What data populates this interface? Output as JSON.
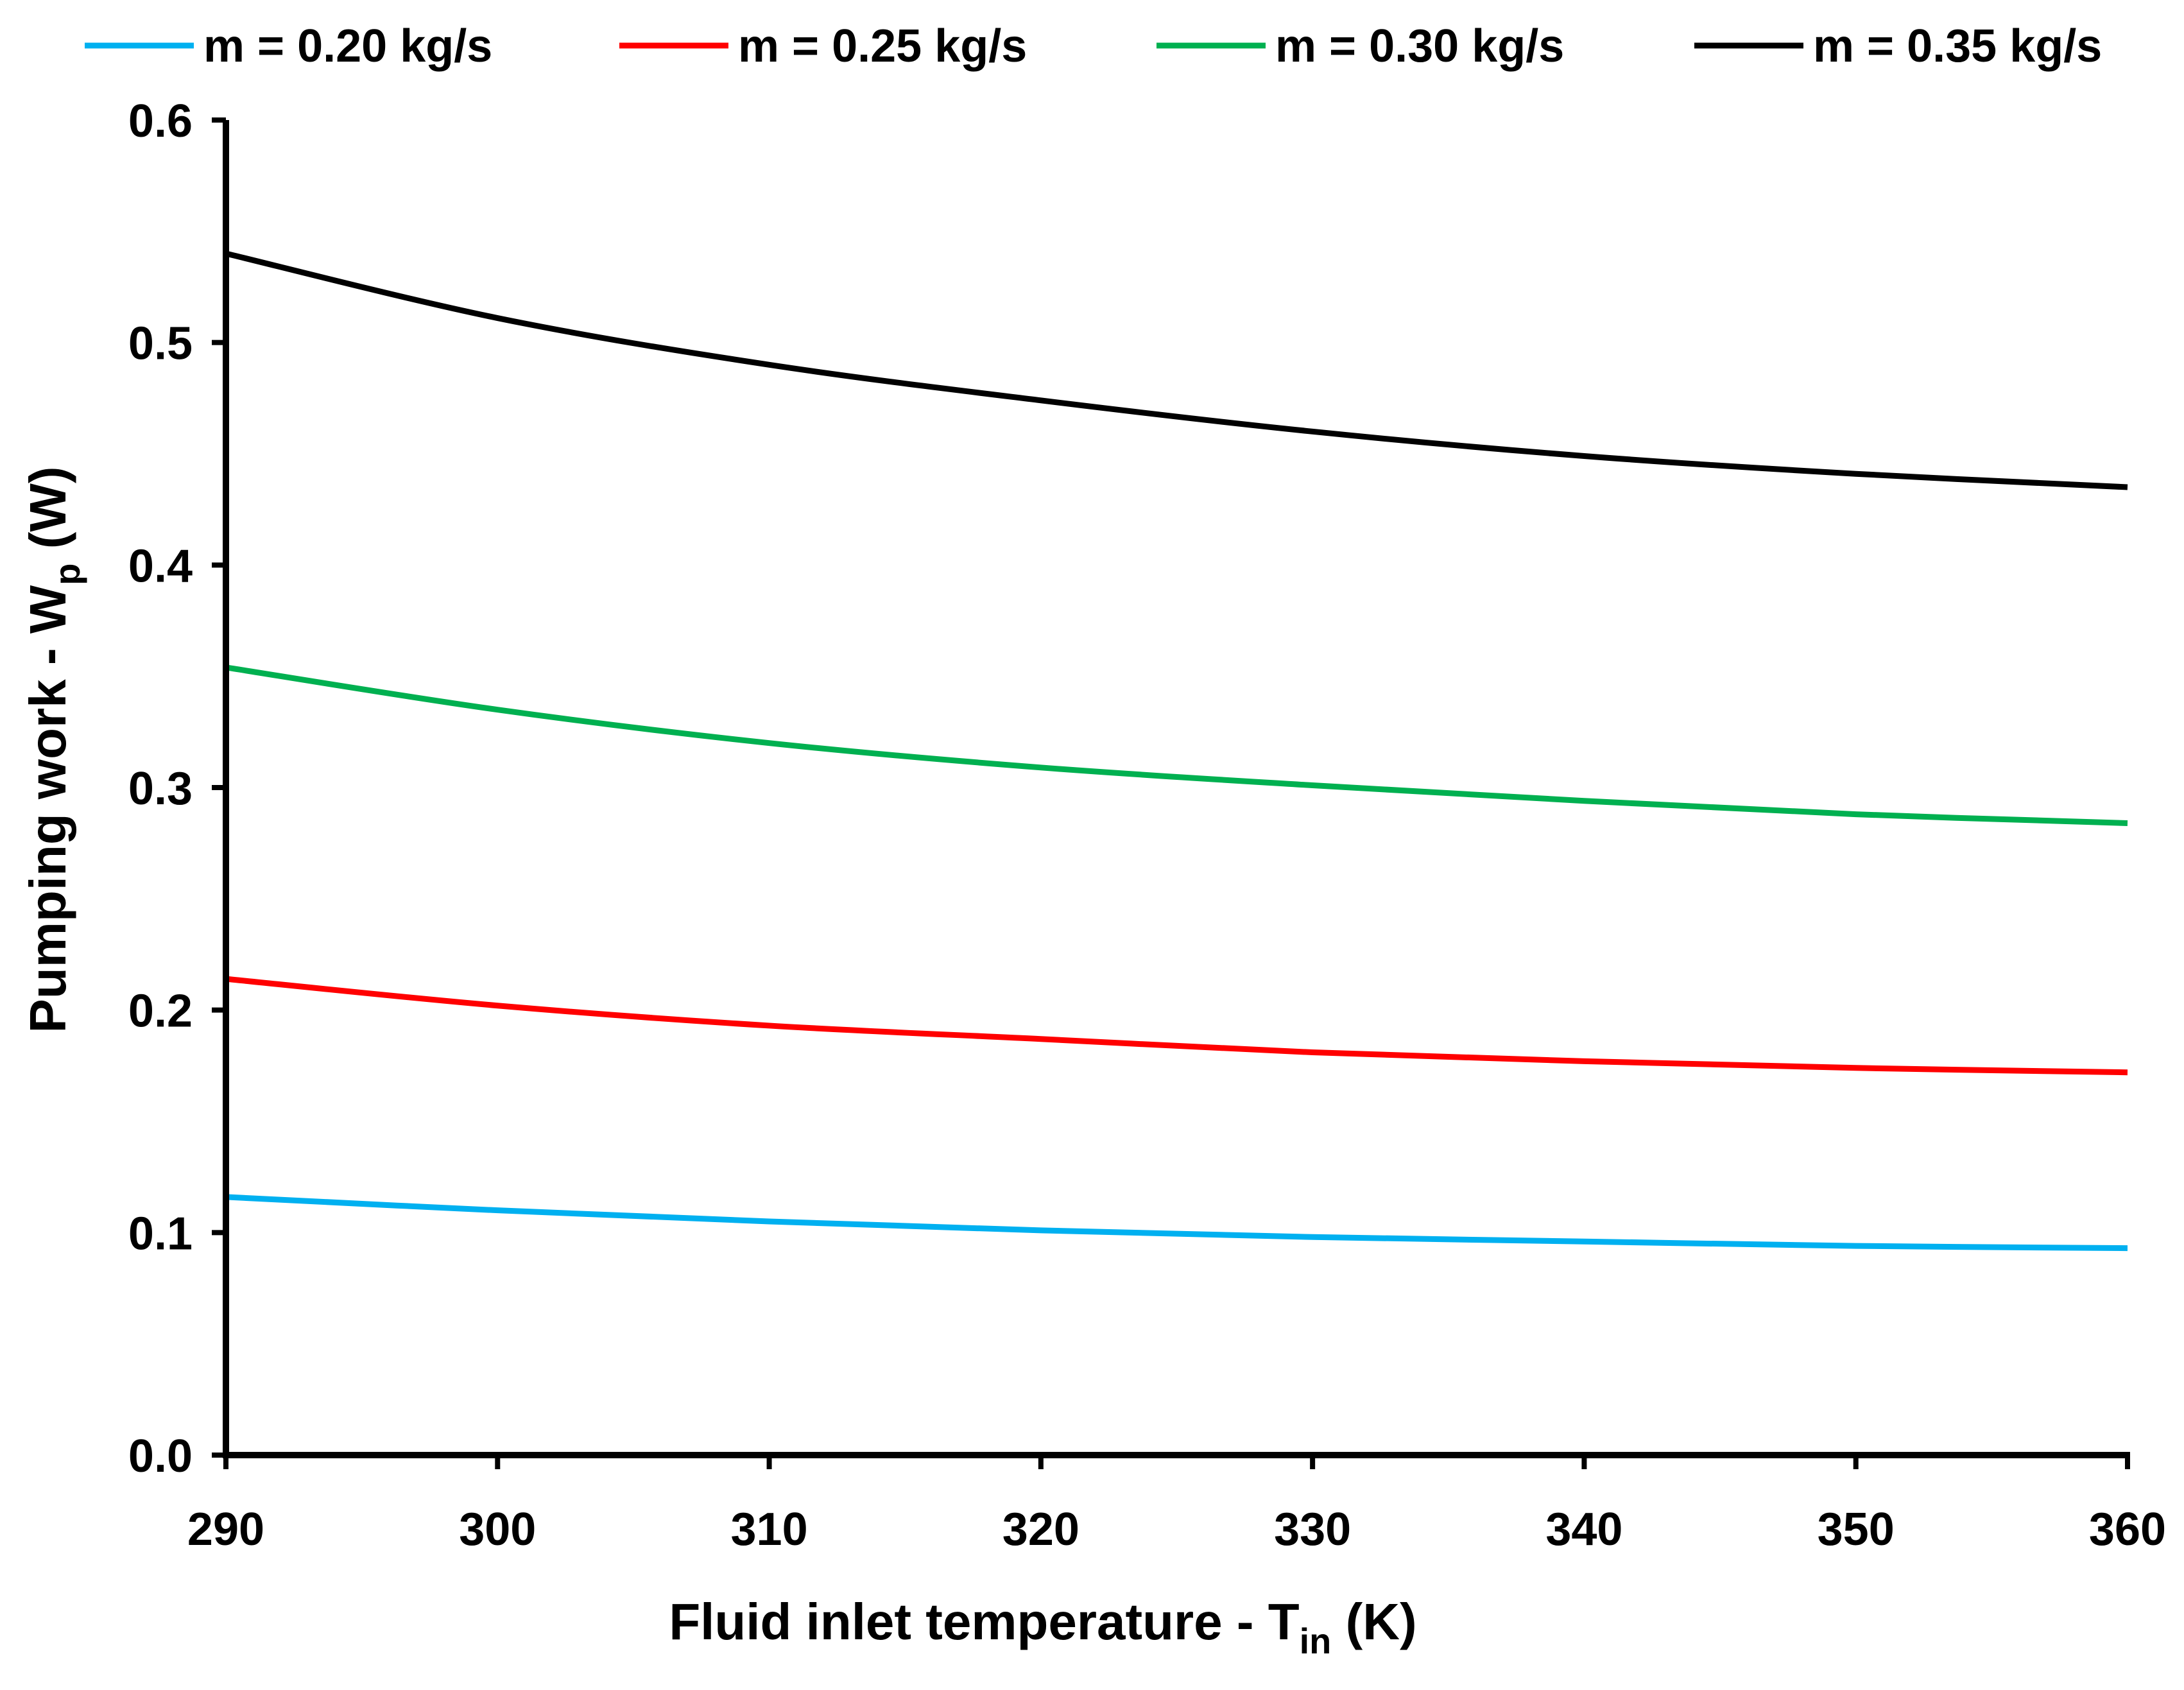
{
  "chart_data": {
    "type": "line",
    "title": "",
    "xlabel": {
      "main": "Fluid inlet temperature - T",
      "sub": "in",
      "unit": " (K)"
    },
    "ylabel": {
      "main": "Pumping work - W",
      "sub": "p",
      "unit": "  (W)"
    },
    "xlim": [
      290,
      360
    ],
    "ylim": [
      0,
      0.6
    ],
    "x_ticks": [
      290,
      300,
      310,
      320,
      330,
      340,
      350,
      360
    ],
    "y_ticks": [
      0.0,
      0.1,
      0.2,
      0.3,
      0.4,
      0.5,
      0.6
    ],
    "y_tick_labels": [
      "0.0",
      "0.1",
      "0.2",
      "0.3",
      "0.4",
      "0.5",
      "0.6"
    ],
    "grid": false,
    "legend_position": "top",
    "x": [
      290,
      300,
      310,
      320,
      330,
      340,
      350,
      360
    ],
    "series": [
      {
        "name": "m = 0.20 kg/s",
        "color": "#00b0f0",
        "values": [
          0.116,
          0.11,
          0.105,
          0.101,
          0.098,
          0.096,
          0.094,
          0.093
        ]
      },
      {
        "name": "m = 0.25 kg/s",
        "color": "#ff0000",
        "values": [
          0.214,
          0.202,
          0.193,
          0.187,
          0.181,
          0.177,
          0.174,
          0.172
        ]
      },
      {
        "name": "m = 0.30 kg/s",
        "color": "#00b050",
        "values": [
          0.354,
          0.335,
          0.32,
          0.309,
          0.301,
          0.294,
          0.288,
          0.284
        ]
      },
      {
        "name": "m = 0.35 kg/s",
        "color": "#000000",
        "values": [
          0.54,
          0.511,
          0.49,
          0.474,
          0.46,
          0.449,
          0.441,
          0.435
        ]
      }
    ]
  }
}
